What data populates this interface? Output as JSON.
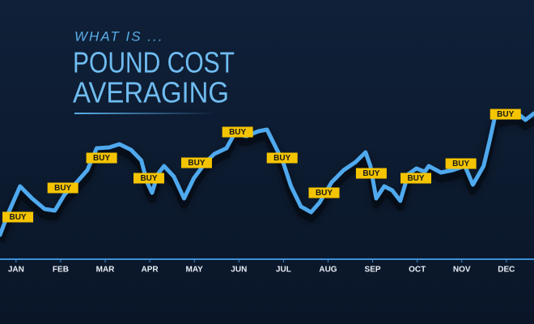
{
  "header": {
    "kicker": "WHAT IS ...",
    "title_lines": [
      "POUND COST",
      "AVERAGING"
    ]
  },
  "chart_data": {
    "type": "line",
    "categories": [
      "JAN",
      "FEB",
      "MAR",
      "APR",
      "MAY",
      "JUN",
      "JUL",
      "AUG",
      "SEP",
      "OCT",
      "NOV",
      "DEC"
    ],
    "xlim": [
      -0.36,
      11.62
    ],
    "ylim": [
      0,
      100
    ],
    "color": "#4fa9ee",
    "x": [
      -0.36,
      -0.15,
      0.09,
      0.36,
      0.64,
      0.87,
      1.09,
      1.36,
      1.6,
      1.81,
      2.09,
      2.32,
      2.58,
      2.81,
      2.94,
      3.05,
      3.18,
      3.32,
      3.54,
      3.77,
      3.99,
      4.26,
      4.45,
      4.72,
      4.9,
      5.17,
      5.44,
      5.63,
      5.81,
      5.99,
      6.17,
      6.39,
      6.62,
      6.81,
      7.08,
      7.35,
      7.62,
      7.84,
      7.95,
      8.08,
      8.26,
      8.44,
      8.62,
      8.8,
      8.98,
      9.17,
      9.26,
      9.53,
      9.8,
      10.07,
      10.25,
      10.49,
      10.62,
      10.74,
      10.98,
      11.25,
      11.43,
      11.62
    ],
    "values": [
      15,
      30,
      45,
      37.5,
      31,
      30,
      40,
      47.5,
      55,
      68.5,
      69,
      71,
      67.5,
      61,
      47.5,
      41,
      52.5,
      57.5,
      51,
      37.5,
      50,
      60,
      65,
      68.5,
      77.5,
      76,
      79,
      80,
      70,
      60,
      45,
      32.5,
      29,
      35,
      47.5,
      55,
      60,
      66,
      57.5,
      37.5,
      45,
      42.5,
      36,
      52.5,
      56,
      54,
      57.5,
      53.5,
      55,
      57.5,
      46,
      57.5,
      72.5,
      87.5,
      88.5,
      90,
      86,
      90
    ],
    "annotations": [
      {
        "text": "BUY",
        "x": 0.04,
        "y": 26
      },
      {
        "text": "BUY",
        "x": 1.05,
        "y": 44
      },
      {
        "text": "BUY",
        "x": 1.92,
        "y": 62.5
      },
      {
        "text": "BUY",
        "x": 2.98,
        "y": 50
      },
      {
        "text": "BUY",
        "x": 4.05,
        "y": 59.5
      },
      {
        "text": "BUY",
        "x": 4.97,
        "y": 78.5
      },
      {
        "text": "BUY",
        "x": 5.97,
        "y": 62.5
      },
      {
        "text": "BUY",
        "x": 6.91,
        "y": 41
      },
      {
        "text": "BUY",
        "x": 7.97,
        "y": 53
      },
      {
        "text": "BUY",
        "x": 8.97,
        "y": 50
      },
      {
        "text": "BUY",
        "x": 9.98,
        "y": 59
      },
      {
        "text": "BUY",
        "x": 10.98,
        "y": 89.5
      }
    ]
  }
}
